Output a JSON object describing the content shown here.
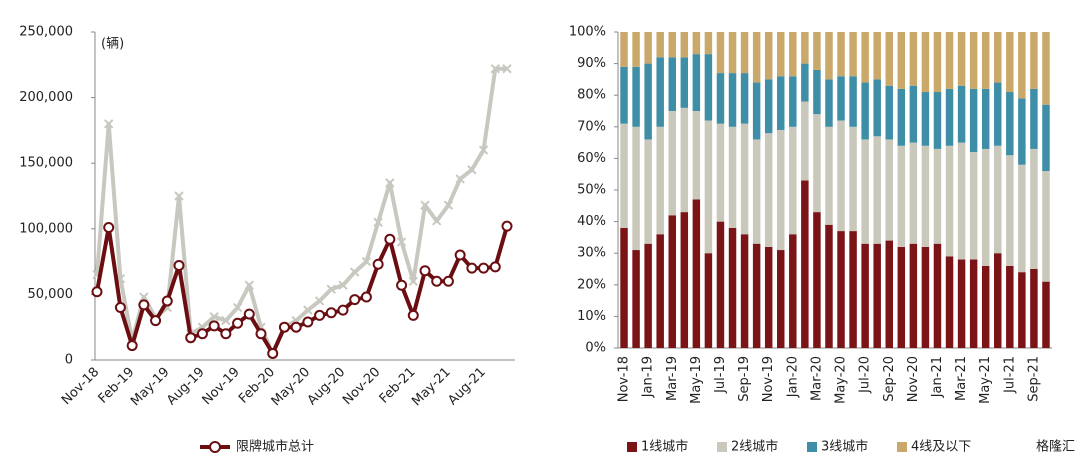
{
  "chart_data": [
    {
      "type": "line",
      "annotation": "(辆)",
      "categories": [
        "Nov-18",
        null,
        null,
        "Feb-19",
        null,
        null,
        "May-19",
        null,
        null,
        "Aug-19",
        null,
        null,
        "Nov-19",
        null,
        null,
        "Feb-20",
        null,
        null,
        "May-20",
        null,
        null,
        "Aug-20",
        null,
        null,
        "Nov-20",
        null,
        null,
        "Feb-21",
        null,
        null,
        "May-21",
        null,
        null,
        "Aug-21",
        null,
        null
      ],
      "series": [
        {
          "name": "限牌城市总计",
          "color": "#6b0e12",
          "marker": "circle",
          "values": [
            52000,
            101000,
            40000,
            11000,
            42000,
            30000,
            45000,
            72000,
            17000,
            20000,
            26000,
            20000,
            28000,
            35000,
            20000,
            5000,
            25000,
            25000,
            29000,
            34000,
            36000,
            38000,
            46000,
            48000,
            73000,
            92000,
            57000,
            34000,
            68000,
            60000,
            60000,
            80000,
            70000,
            70000,
            71000,
            102000
          ]
        },
        {
          "color": "#c8c8c0",
          "marker": "x",
          "values": [
            65000,
            180000,
            62000,
            15000,
            48000,
            32000,
            40000,
            125000,
            20000,
            25000,
            33000,
            30000,
            40000,
            57000,
            25000,
            5000,
            25000,
            30000,
            38000,
            45000,
            54000,
            57000,
            67000,
            75000,
            105000,
            135000,
            90000,
            60000,
            118000,
            106000,
            118000,
            138000,
            145000,
            160000,
            222000,
            222000
          ]
        }
      ],
      "ylim": [
        0,
        250000
      ],
      "yticks": [
        0,
        {
          "value": 50000,
          "label": "50,000"
        },
        {
          "value": 100000,
          "label": "100,000"
        },
        {
          "value": 150000,
          "label": "150,000"
        },
        {
          "value": 200000,
          "label": "200,000"
        },
        {
          "value": 250000,
          "label": "250,000"
        }
      ]
    },
    {
      "type": "bar",
      "stacked": true,
      "watermark": "格隆汇",
      "categories": [
        "Nov-18",
        null,
        "Jan-19",
        null,
        "Mar-19",
        null,
        "May-19",
        null,
        "Jul-19",
        null,
        "Sep-19",
        null,
        "Nov-19",
        null,
        "Jan-20",
        null,
        "Mar-20",
        null,
        "May-20",
        null,
        "Jul-20",
        null,
        "Sep-20",
        null,
        "Nov-20",
        null,
        "Jan-21",
        null,
        "Mar-21",
        null,
        "May-21",
        null,
        "Jul-21",
        null,
        "Sep-21",
        null
      ],
      "series": [
        {
          "name": "1线城市",
          "color": "#7b1416",
          "values": [
            38,
            31,
            33,
            36,
            42,
            43,
            47,
            30,
            40,
            38,
            36,
            33,
            32,
            31,
            36,
            53,
            43,
            39,
            37,
            37,
            33,
            33,
            34,
            32,
            33,
            32,
            33,
            29,
            28,
            28,
            26,
            30,
            26,
            24,
            25,
            21
          ]
        },
        {
          "name": "2线城市",
          "color": "#c9c8bb",
          "values": [
            33,
            39,
            33,
            34,
            33,
            33,
            28,
            42,
            31,
            32,
            35,
            33,
            36,
            38,
            34,
            25,
            31,
            31,
            35,
            33,
            33,
            34,
            32,
            32,
            32,
            32,
            30,
            35,
            37,
            34,
            37,
            34,
            35,
            34,
            38,
            35
          ]
        },
        {
          "name": "3线城市",
          "color": "#3f8ea7",
          "values": [
            18,
            19,
            24,
            22,
            17,
            16,
            18,
            21,
            16,
            17,
            16,
            18,
            17,
            17,
            16,
            12,
            14,
            15,
            14,
            16,
            18,
            18,
            17,
            18,
            18,
            17,
            18,
            18,
            18,
            20,
            19,
            20,
            20,
            21,
            19,
            21
          ]
        },
        {
          "name": "4线及以下",
          "color": "#c9a86a",
          "values": [
            11,
            11,
            10,
            8,
            8,
            8,
            7,
            7,
            13,
            13,
            13,
            16,
            15,
            14,
            14,
            10,
            12,
            15,
            14,
            14,
            16,
            15,
            17,
            18,
            17,
            19,
            19,
            18,
            17,
            18,
            18,
            16,
            19,
            21,
            18,
            23
          ]
        }
      ],
      "ylim": [
        0,
        100
      ],
      "yticks": [
        {
          "value": 0,
          "label": "0%"
        },
        {
          "value": 10,
          "label": "10%"
        },
        {
          "value": 20,
          "label": "20%"
        },
        {
          "value": 30,
          "label": "30%"
        },
        {
          "value": 40,
          "label": "40%"
        },
        {
          "value": 50,
          "label": "50%"
        },
        {
          "value": 60,
          "label": "60%"
        },
        {
          "value": 70,
          "label": "70%"
        },
        {
          "value": 80,
          "label": "80%"
        },
        {
          "value": 90,
          "label": "90%"
        },
        {
          "value": 100,
          "label": "100%"
        }
      ]
    }
  ]
}
